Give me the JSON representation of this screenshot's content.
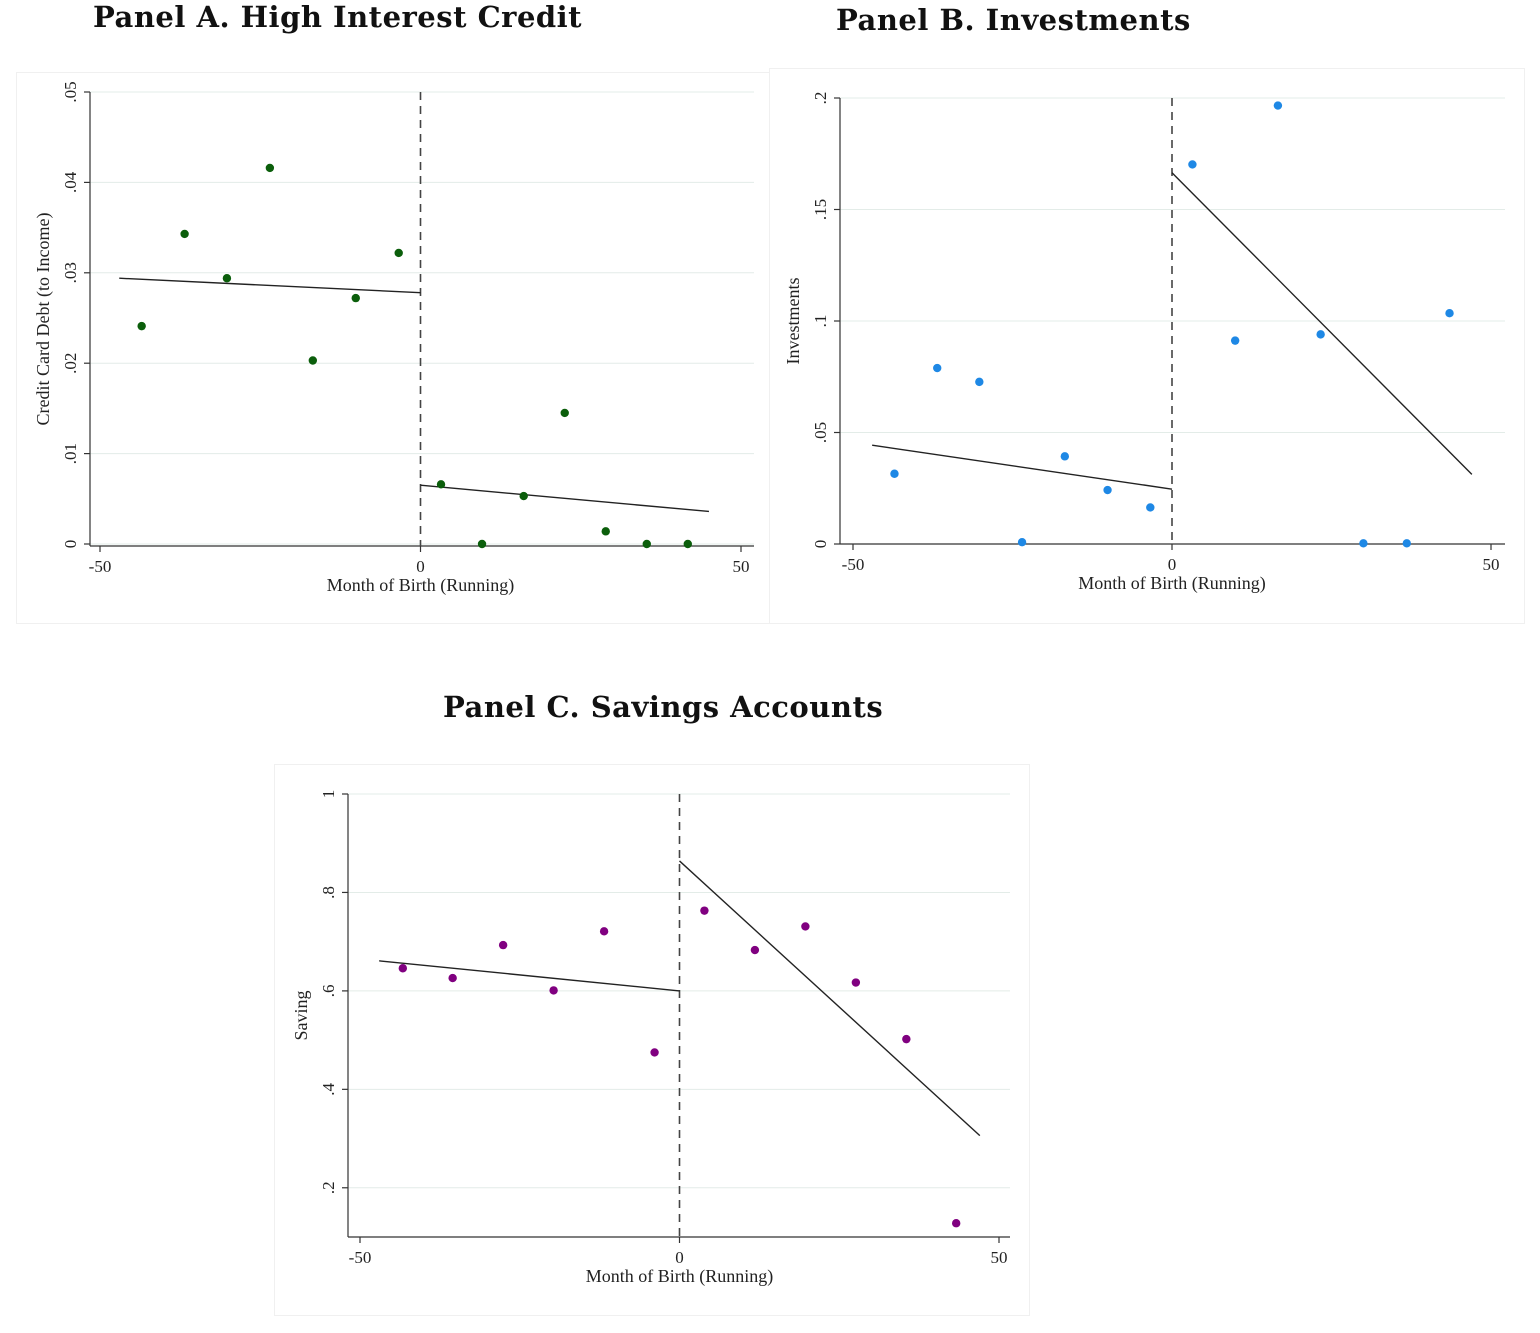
{
  "panels": [
    {
      "title": "Panel A. High Interest Credit"
    },
    {
      "title": "Panel B. Investments"
    },
    {
      "title": "Panel C. Savings Accounts"
    }
  ],
  "chart_data": [
    {
      "type": "scatter",
      "title": "Panel A. High Interest Credit",
      "xlabel": "Month of Birth (Running)",
      "ylabel": "Credit Card Debt (to Income)",
      "xlim": [
        -50,
        50
      ],
      "ylim": [
        0,
        0.05
      ],
      "xticks": [
        -50,
        0,
        50
      ],
      "xtick_labels": [
        "-50",
        "0",
        "50"
      ],
      "yticks": [
        0,
        0.01,
        0.02,
        0.03,
        0.04,
        0.05
      ],
      "ytick_labels": [
        "0",
        ".01",
        ".02",
        ".03",
        ".04",
        ".05"
      ],
      "grid": "horizontal",
      "cutoff": 0,
      "marker_color": "#0b5e0b",
      "points": [
        {
          "x": -43.5,
          "y": 0.0241
        },
        {
          "x": -36.8,
          "y": 0.0343
        },
        {
          "x": -30.2,
          "y": 0.0294
        },
        {
          "x": -23.5,
          "y": 0.0416
        },
        {
          "x": -16.8,
          "y": 0.0203
        },
        {
          "x": -10.1,
          "y": 0.0272
        },
        {
          "x": -3.4,
          "y": 0.0322
        },
        {
          "x": 3.2,
          "y": 0.0066
        },
        {
          "x": 9.6,
          "y": 0.0
        },
        {
          "x": 16.1,
          "y": 0.0053
        },
        {
          "x": 22.5,
          "y": 0.0145
        },
        {
          "x": 28.9,
          "y": 0.0014
        },
        {
          "x": 35.3,
          "y": 0.0
        },
        {
          "x": 41.7,
          "y": 0.0
        }
      ],
      "fit_lines": [
        {
          "x": [
            -47,
            0
          ],
          "y": [
            0.0294,
            0.0278
          ]
        },
        {
          "x": [
            0,
            45
          ],
          "y": [
            0.0065,
            0.0036
          ]
        }
      ]
    },
    {
      "type": "scatter",
      "title": "Panel B. Investments",
      "xlabel": "Month of Birth (Running)",
      "ylabel": "Investments",
      "xlim": [
        -50,
        50
      ],
      "ylim": [
        0,
        0.2
      ],
      "xticks": [
        -50,
        0,
        50
      ],
      "xtick_labels": [
        "-50",
        "0",
        "50"
      ],
      "yticks": [
        0,
        0.05,
        0.1,
        0.15,
        0.2
      ],
      "ytick_labels": [
        "0",
        ".05",
        ".1",
        ".15",
        ".2"
      ],
      "grid": "horizontal",
      "cutoff": 0,
      "marker_color": "#1e88e5",
      "points": [
        {
          "x": -43.5,
          "y": 0.0315
        },
        {
          "x": -36.8,
          "y": 0.0789
        },
        {
          "x": -30.2,
          "y": 0.0727
        },
        {
          "x": -23.5,
          "y": 0.0008
        },
        {
          "x": -16.8,
          "y": 0.0393
        },
        {
          "x": -10.1,
          "y": 0.0242
        },
        {
          "x": -3.4,
          "y": 0.0164
        },
        {
          "x": 3.2,
          "y": 0.1702
        },
        {
          "x": 9.9,
          "y": 0.0912
        },
        {
          "x": 16.6,
          "y": 0.1966
        },
        {
          "x": 23.3,
          "y": 0.094
        },
        {
          "x": 30.0,
          "y": 0.0003
        },
        {
          "x": 36.8,
          "y": 0.0003
        },
        {
          "x": 43.5,
          "y": 0.1035
        }
      ],
      "fit_lines": [
        {
          "x": [
            -47,
            0
          ],
          "y": [
            0.0443,
            0.0246
          ]
        },
        {
          "x": [
            0,
            47
          ],
          "y": [
            0.1665,
            0.0312
          ]
        }
      ]
    },
    {
      "type": "scatter",
      "title": "Panel C. Savings Accounts",
      "xlabel": "Month of Birth (Running)",
      "ylabel": "Saving",
      "xlim": [
        -52,
        52
      ],
      "ylim": [
        0.1,
        1.0
      ],
      "xticks": [
        -50,
        0,
        50
      ],
      "xtick_labels": [
        "-50",
        "0",
        "50"
      ],
      "yticks": [
        0.2,
        0.4,
        0.6,
        0.8,
        1.0
      ],
      "ytick_labels": [
        ".2",
        ".4",
        ".6",
        ".8",
        "1"
      ],
      "grid": "horizontal",
      "cutoff": 0,
      "marker_color": "#800080",
      "points": [
        {
          "x": -43.3,
          "y": 0.646
        },
        {
          "x": -35.5,
          "y": 0.626
        },
        {
          "x": -27.6,
          "y": 0.693
        },
        {
          "x": -19.7,
          "y": 0.601
        },
        {
          "x": -11.8,
          "y": 0.721
        },
        {
          "x": -3.9,
          "y": 0.475
        },
        {
          "x": 3.9,
          "y": 0.763
        },
        {
          "x": 11.8,
          "y": 0.683
        },
        {
          "x": 19.7,
          "y": 0.731
        },
        {
          "x": 27.6,
          "y": 0.617
        },
        {
          "x": 35.5,
          "y": 0.502
        },
        {
          "x": 43.3,
          "y": 0.128
        }
      ],
      "fit_lines": [
        {
          "x": [
            -47,
            0
          ],
          "y": [
            0.661,
            0.6
          ]
        },
        {
          "x": [
            0,
            47
          ],
          "y": [
            0.864,
            0.306
          ]
        }
      ]
    }
  ]
}
